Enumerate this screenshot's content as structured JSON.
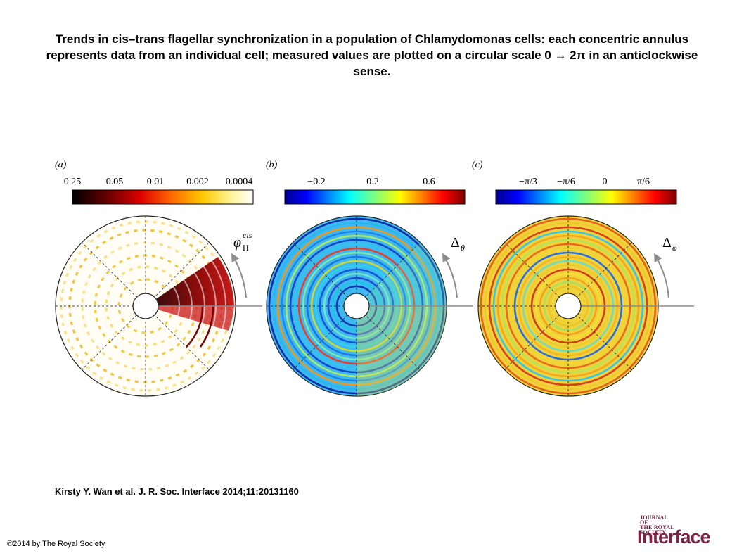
{
  "title": "Trends in cis–trans flagellar synchronization in a population of Chlamydomonas cells: each concentric annulus represents data from an individual cell; measured values are plotted on a circular scale 0 → 2π in an anticlockwise sense.",
  "citation": "Kirsty Y. Wan et al. J. R. Soc. Interface 2014;11:20131160",
  "copyright": "©2014 by The Royal Society",
  "logo": {
    "journal_lines": [
      "JOURNAL",
      "OF",
      "THE ROYAL",
      "SOCIETY"
    ],
    "word": "Interface",
    "color": "#7a2547"
  },
  "panels": [
    {
      "label": "(a)",
      "colorbar_ticks": [
        "0.25",
        "0.05",
        "0.01",
        "0.002",
        "0.0004"
      ],
      "variable": "φ",
      "variable_sup": "cis",
      "variable_sub": "H",
      "colormap": "hot"
    },
    {
      "label": "(b)",
      "colorbar_ticks": [
        "−0.2",
        "0.2",
        "0.6"
      ],
      "variable": "Δ",
      "variable_sub": "θ",
      "colormap": "jet"
    },
    {
      "label": "(c)",
      "colorbar_ticks": [
        "−π/3",
        "−π/6",
        "0",
        "π/6"
      ],
      "variable": "Δ",
      "variable_sub": "φ",
      "colormap": "jet"
    }
  ]
}
